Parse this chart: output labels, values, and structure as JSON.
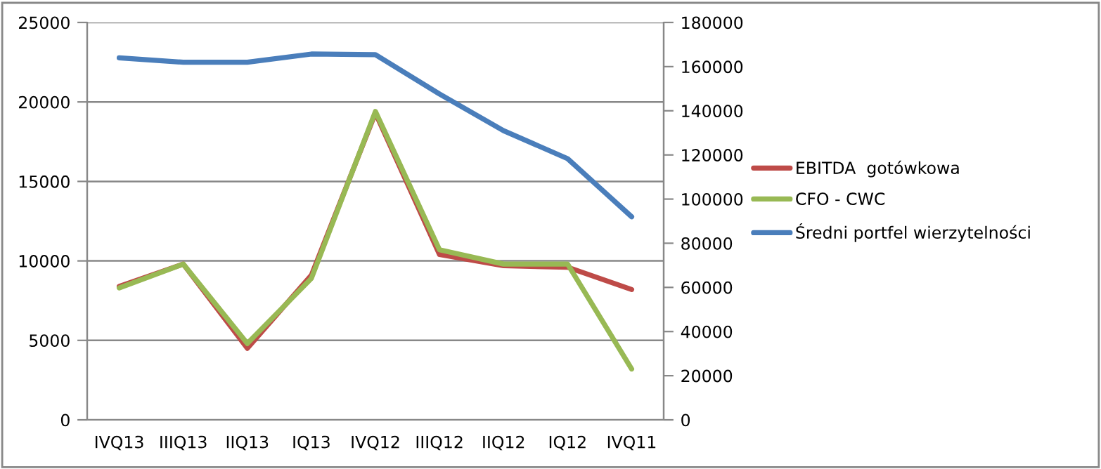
{
  "chart_data": {
    "type": "line",
    "categories": [
      "IVQ13",
      "IIIQ13",
      "IIQ13",
      "IQ13",
      "IVQ12",
      "IIIQ12",
      "IIQ12",
      "IQ12",
      "IVQ11"
    ],
    "series": [
      {
        "name": "EBITDA  gotówkowa",
        "color": "#be4b48",
        "values": [
          8400,
          9800,
          4500,
          9100,
          19300,
          10400,
          9700,
          9600,
          8200
        ]
      },
      {
        "name": "CFO - CWC",
        "color": "#98b954",
        "values": [
          8300,
          9800,
          4800,
          8900,
          19400,
          10700,
          9800,
          9800,
          3200
        ]
      },
      {
        "name": "Średni portfel wierzytelności",
        "color": "#4a7ebb",
        "axis": "y2",
        "values": [
          164000,
          162000,
          162000,
          165700,
          165400,
          147600,
          131000,
          118300,
          92000
        ]
      }
    ],
    "ylim": [
      0,
      25000
    ],
    "yticks": [
      0,
      5000,
      10000,
      15000,
      20000,
      25000
    ],
    "y2lim": [
      0,
      180000
    ],
    "y2ticks": [
      0,
      20000,
      40000,
      60000,
      80000,
      100000,
      120000,
      140000,
      160000,
      180000
    ],
    "grid": "y",
    "legend": "right",
    "marker": "none",
    "line_style": "solid"
  }
}
